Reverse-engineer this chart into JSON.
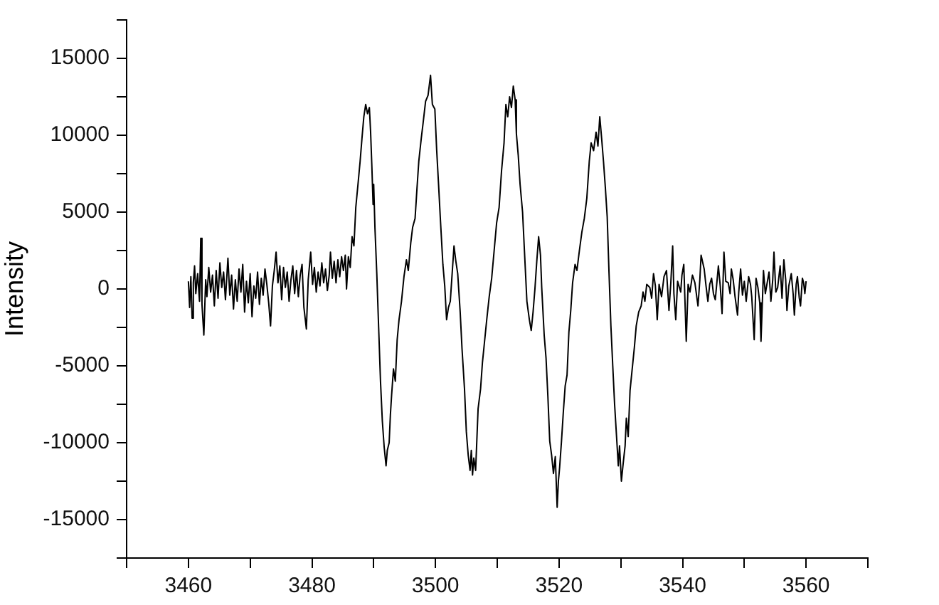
{
  "chart_data": {
    "type": "line",
    "ylabel": "Intensity",
    "color": "#000000",
    "marker": "none",
    "line_style": "solid",
    "grid": false,
    "legend": false,
    "xlim": [
      3450,
      3570
    ],
    "xticks": [
      {
        "value": 3450,
        "label": null
      },
      3460,
      {
        "value": 3470,
        "label": null
      },
      3480,
      {
        "value": 3490,
        "label": null
      },
      3500,
      {
        "value": 3510,
        "label": null
      },
      3520,
      {
        "value": 3530,
        "label": null
      },
      3540,
      {
        "value": 3550,
        "label": null
      },
      3560,
      {
        "value": 3570,
        "label": null
      }
    ],
    "ylim": [
      -17500,
      17500
    ],
    "yticks": [
      {
        "value": -17500,
        "label": null
      },
      -15000,
      {
        "value": -12500,
        "label": null
      },
      -10000,
      {
        "value": -7500,
        "label": null
      },
      -5000,
      {
        "value": -2500,
        "label": null
      },
      0,
      {
        "value": 2500,
        "label": null
      },
      5000,
      {
        "value": 7500,
        "label": null
      },
      10000,
      {
        "value": 12500,
        "label": null
      },
      15000,
      {
        "value": 17500,
        "label": null
      }
    ],
    "x": [
      3460.0,
      3460.2,
      3460.4,
      3460.6,
      3460.8,
      3461.0,
      3461.2,
      3461.5,
      3461.8,
      3462.0,
      3462.2,
      3462.5,
      3462.8,
      3463.0,
      3463.3,
      3463.6,
      3463.9,
      3464.2,
      3464.5,
      3464.8,
      3465.1,
      3465.4,
      3465.7,
      3466.0,
      3466.4,
      3466.7,
      3467.0,
      3467.3,
      3467.6,
      3467.9,
      3468.2,
      3468.5,
      3468.8,
      3469.1,
      3469.4,
      3469.7,
      3470.0,
      3470.3,
      3470.6,
      3470.9,
      3471.2,
      3471.5,
      3471.8,
      3472.1,
      3472.4,
      3472.7,
      3473.0,
      3473.3,
      3473.6,
      3473.9,
      3474.2,
      3474.5,
      3474.8,
      3475.1,
      3475.4,
      3475.7,
      3476.0,
      3476.3,
      3476.6,
      3476.9,
      3477.2,
      3477.5,
      3477.8,
      3478.1,
      3478.4,
      3478.7,
      3479.1,
      3479.4,
      3479.8,
      3480.1,
      3480.4,
      3480.7,
      3481.0,
      3481.3,
      3481.6,
      3481.9,
      3482.2,
      3482.5,
      3482.8,
      3483.0,
      3483.3,
      3483.6,
      3483.9,
      3484.2,
      3484.5,
      3484.8,
      3485.1,
      3485.4,
      3485.6,
      3485.9,
      3486.2,
      3486.5,
      3486.8,
      3487.1,
      3487.5,
      3487.8,
      3488.1,
      3488.4,
      3488.7,
      3489.0,
      3489.3,
      3489.5,
      3489.7,
      3489.9,
      3490.0,
      3490.2,
      3490.5,
      3490.8,
      3491.1,
      3491.4,
      3491.7,
      3492.0,
      3492.2,
      3492.5,
      3492.7,
      3492.9,
      3493.2,
      3493.5,
      3493.8,
      3494.1,
      3494.5,
      3494.9,
      3495.3,
      3495.6,
      3496.0,
      3496.3,
      3496.7,
      3497.0,
      3497.3,
      3497.7,
      3498.0,
      3498.4,
      3498.8,
      3499.2,
      3499.5,
      3499.9,
      3500.2,
      3500.5,
      3500.8,
      3501.2,
      3501.5,
      3501.8,
      3502.1,
      3502.4,
      3502.7,
      3503.0,
      3503.3,
      3503.6,
      3504.0,
      3504.3,
      3504.7,
      3505.0,
      3505.3,
      3505.6,
      3505.8,
      3506.0,
      3506.2,
      3506.5,
      3506.7,
      3506.9,
      3507.3,
      3507.6,
      3507.9,
      3508.3,
      3508.7,
      3509.1,
      3509.5,
      3509.9,
      3510.3,
      3510.7,
      3511.1,
      3511.4,
      3511.7,
      3512.0,
      3512.3,
      3512.6,
      3512.9,
      3513.1,
      3513.4,
      3513.7,
      3514.1,
      3514.4,
      3514.8,
      3515.2,
      3515.5,
      3515.8,
      3516.1,
      3516.4,
      3516.7,
      3517.0,
      3517.2,
      3517.6,
      3517.9,
      3518.2,
      3518.5,
      3518.8,
      3519.1,
      3519.4,
      3519.7,
      3519.9,
      3520.1,
      3520.4,
      3520.7,
      3521.0,
      3521.3,
      3521.6,
      3521.9,
      3522.2,
      3522.6,
      3522.9,
      3523.3,
      3523.7,
      3524.1,
      3524.5,
      3524.9,
      3525.2,
      3525.6,
      3526.0,
      3526.3,
      3526.6,
      3526.9,
      3527.2,
      3527.5,
      3527.8,
      3528.1,
      3528.4,
      3528.7,
      3529.0,
      3529.3,
      3529.6,
      3529.8,
      3530.1,
      3530.4,
      3530.7,
      3530.9,
      3531.2,
      3531.5,
      3531.8,
      3532.2,
      3532.5,
      3532.9,
      3533.3,
      3533.6,
      3533.9,
      3534.2,
      3534.7,
      3535.0,
      3535.3,
      3535.6,
      3535.9,
      3536.2,
      3536.6,
      3537.0,
      3537.4,
      3537.8,
      3538.1,
      3538.4,
      3538.6,
      3538.9,
      3539.2,
      3539.7,
      3539.9,
      3540.2,
      3540.6,
      3540.9,
      3541.2,
      3541.6,
      3542.0,
      3542.5,
      3542.8,
      3543.0,
      3543.5,
      3543.8,
      3544.1,
      3544.4,
      3544.7,
      3545.0,
      3545.3,
      3545.8,
      3546.1,
      3546.4,
      3546.7,
      3547.0,
      3547.4,
      3547.7,
      3547.9,
      3548.2,
      3548.5,
      3548.9,
      3549.1,
      3549.4,
      3549.7,
      3550.0,
      3550.3,
      3550.7,
      3551.0,
      3551.2,
      3551.6,
      3551.9,
      3552.2,
      3552.5,
      3552.7,
      3553.1,
      3553.4,
      3553.7,
      3554.0,
      3554.3,
      3554.6,
      3554.8,
      3555.1,
      3555.4,
      3555.8,
      3556.1,
      3556.4,
      3556.7,
      3556.9,
      3557.2,
      3557.6,
      3557.9,
      3558.1,
      3558.4,
      3558.6,
      3558.9,
      3559.1,
      3559.4,
      3559.6,
      3559.8,
      3560.0
    ],
    "values": [
      500,
      -1200,
      800,
      -1900,
      400,
      1500,
      -300,
      1000,
      -800,
      3300,
      -1000,
      -3000,
      600,
      -500,
      1400,
      -200,
      900,
      -1100,
      1200,
      -600,
      1700,
      100,
      1100,
      -700,
      2000,
      -400,
      900,
      -1300,
      600,
      -800,
      1300,
      -200,
      1600,
      -1500,
      500,
      -900,
      1000,
      -1800,
      200,
      -600,
      1100,
      -1000,
      700,
      -400,
      1300,
      300,
      -900,
      -2400,
      200,
      1200,
      2400,
      400,
      1500,
      -700,
      1400,
      100,
      1100,
      -800,
      600,
      1500,
      -300,
      1200,
      -500,
      900,
      1600,
      -1200,
      -2600,
      600,
      2400,
      300,
      1400,
      -200,
      1100,
      200,
      1700,
      400,
      1300,
      -100,
      900,
      2400,
      700,
      1800,
      400,
      1900,
      800,
      2100,
      1200,
      2200,
      0,
      2100,
      1400,
      3400,
      2800,
      5300,
      7000,
      8300,
      9800,
      11200,
      12000,
      11400,
      11800,
      10200,
      8000,
      5500,
      6800,
      4000,
      1000,
      -2500,
      -6000,
      -8600,
      -10300,
      -11500,
      -10500,
      -10000,
      -8200,
      -6900,
      -5200,
      -6000,
      -3300,
      -2000,
      -800,
      800,
      1900,
      1200,
      3000,
      4000,
      4600,
      6500,
      8300,
      9800,
      10800,
      12200,
      12600,
      13900,
      12000,
      11700,
      9000,
      6800,
      4500,
      1600,
      200,
      -2000,
      -1200,
      -800,
      1000,
      2800,
      1800,
      1000,
      -1500,
      -3900,
      -6500,
      -9300,
      -10800,
      -11800,
      -10500,
      -12100,
      -11000,
      -11800,
      -9800,
      -7800,
      -6500,
      -4800,
      -3600,
      -2000,
      -500,
      700,
      2500,
      4300,
      5300,
      7700,
      9500,
      12000,
      11200,
      12500,
      11800,
      13200,
      12300,
      10100,
      8700,
      6800,
      5000,
      2500,
      -800,
      -2000,
      -2700,
      -1500,
      0,
      1800,
      3400,
      2200,
      100,
      -3000,
      -4500,
      -7000,
      -9900,
      -10800,
      -12000,
      -10900,
      -14200,
      -12500,
      -11600,
      -9900,
      -8000,
      -6300,
      -5600,
      -2800,
      -1400,
      400,
      1600,
      1200,
      2500,
      3700,
      4600,
      5900,
      8300,
      9500,
      9000,
      10200,
      9300,
      11200,
      9800,
      8300,
      6600,
      4700,
      1000,
      -2400,
      -5000,
      -7500,
      -9500,
      -11500,
      -10200,
      -12500,
      -11300,
      -10200,
      -8400,
      -9600,
      -6600,
      -5400,
      -3800,
      -2400,
      -1500,
      -1100,
      -200,
      -800,
      300,
      100,
      -600,
      1000,
      200,
      -2000,
      300,
      -500,
      800,
      1200,
      -1400,
      400,
      2800,
      -300,
      -2000,
      500,
      -200,
      900,
      1600,
      -3400,
      300,
      -200,
      900,
      400,
      -1100,
      600,
      2200,
      1300,
      200,
      -800,
      300,
      700,
      -300,
      -700,
      1500,
      200,
      -1600,
      2400,
      500,
      400,
      -300,
      1300,
      600,
      -500,
      -1700,
      -200,
      1300,
      -400,
      500,
      -800,
      800,
      300,
      -500,
      -3300,
      700,
      100,
      -900,
      -3400,
      1200,
      -300,
      400,
      1100,
      -800,
      600,
      2400,
      -200,
      100,
      1500,
      -600,
      1900,
      600,
      -1400,
      200,
      1000,
      -300,
      -1700,
      300,
      800,
      -600,
      -1100,
      700,
      400,
      -300,
      500
    ]
  }
}
